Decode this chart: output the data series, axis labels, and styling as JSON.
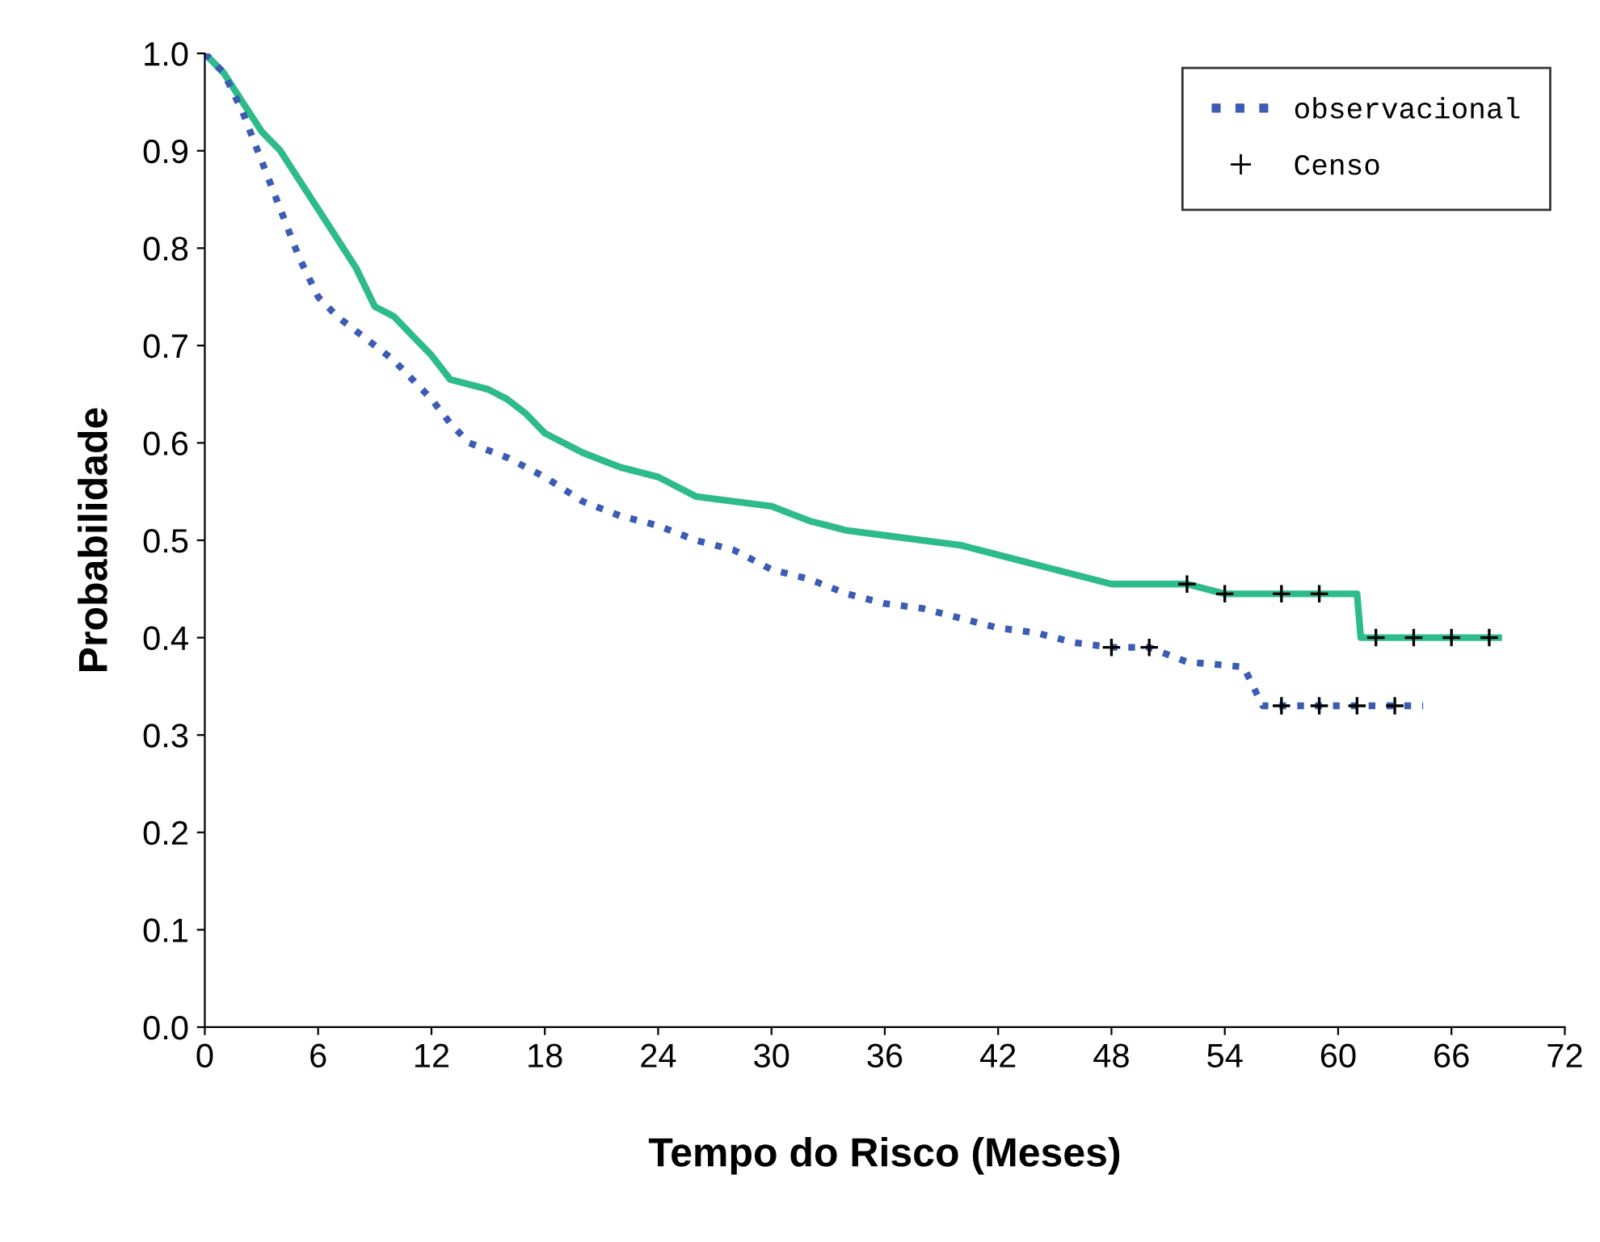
{
  "chart_data": {
    "type": "line",
    "xlabel": "Tempo do Risco (Meses)",
    "ylabel": "Probabilidade",
    "xlim": [
      0,
      72
    ],
    "xticks": [
      0,
      6,
      12,
      18,
      24,
      30,
      36,
      42,
      48,
      54,
      60,
      66,
      72
    ],
    "ylim": [
      0,
      1.0
    ],
    "yticks": [
      {
        "value": 0,
        "label": "0.0"
      },
      0.1,
      0.2,
      0.3,
      0.4,
      0.5,
      0.6,
      0.7,
      0.8,
      0.9,
      {
        "value": 1.0,
        "label": "1.0"
      }
    ],
    "grid": false,
    "legend": "top right",
    "series": [
      {
        "color": "#2dbb8a",
        "line_style": "solid",
        "x": [
          0,
          1,
          2,
          3,
          4,
          5,
          6,
          7,
          8,
          9,
          10,
          11,
          12,
          13,
          15,
          16,
          17,
          18,
          20,
          22,
          24,
          26,
          28,
          30,
          32,
          34,
          36,
          38,
          40,
          42,
          44,
          46,
          48,
          50,
          52,
          54,
          56,
          58,
          61,
          61.2,
          68.5
        ],
        "values": [
          1.0,
          0.98,
          0.95,
          0.92,
          0.9,
          0.87,
          0.84,
          0.81,
          0.78,
          0.74,
          0.73,
          0.71,
          0.69,
          0.665,
          0.655,
          0.645,
          0.63,
          0.61,
          0.59,
          0.575,
          0.565,
          0.545,
          0.54,
          0.535,
          0.52,
          0.51,
          0.505,
          0.5,
          0.495,
          0.485,
          0.475,
          0.465,
          0.455,
          0.455,
          0.455,
          0.445,
          0.445,
          0.445,
          0.445,
          0.4,
          0.4
        ]
      },
      {
        "name": "observacional",
        "color": "#3b5bb5",
        "line_style": "dotted",
        "x": [
          0,
          1,
          2,
          3,
          4,
          5,
          6,
          7,
          8,
          9,
          10,
          11,
          12,
          13,
          14,
          16,
          18,
          20,
          22,
          24,
          26,
          28,
          30,
          32,
          34,
          36,
          38,
          40,
          42,
          44,
          46,
          48,
          50,
          52,
          55,
          55.5,
          56,
          60,
          64.5
        ],
        "values": [
          1.0,
          0.98,
          0.94,
          0.89,
          0.84,
          0.79,
          0.75,
          0.73,
          0.715,
          0.7,
          0.685,
          0.665,
          0.645,
          0.62,
          0.6,
          0.585,
          0.565,
          0.54,
          0.525,
          0.515,
          0.5,
          0.49,
          0.47,
          0.46,
          0.445,
          0.435,
          0.43,
          0.42,
          0.41,
          0.405,
          0.395,
          0.39,
          0.39,
          0.375,
          0.37,
          0.35,
          0.33,
          0.33,
          0.33
        ]
      },
      {
        "name": "Censo",
        "type": "scatter",
        "marker": "cross",
        "color": "#000000",
        "x": [
          52,
          54,
          57,
          59,
          62,
          64,
          66,
          68,
          48,
          50,
          57,
          59,
          61,
          63
        ],
        "values": [
          0.455,
          0.445,
          0.445,
          0.445,
          0.4,
          0.4,
          0.4,
          0.4,
          0.39,
          0.39,
          0.33,
          0.33,
          0.33,
          0.33
        ]
      }
    ]
  }
}
